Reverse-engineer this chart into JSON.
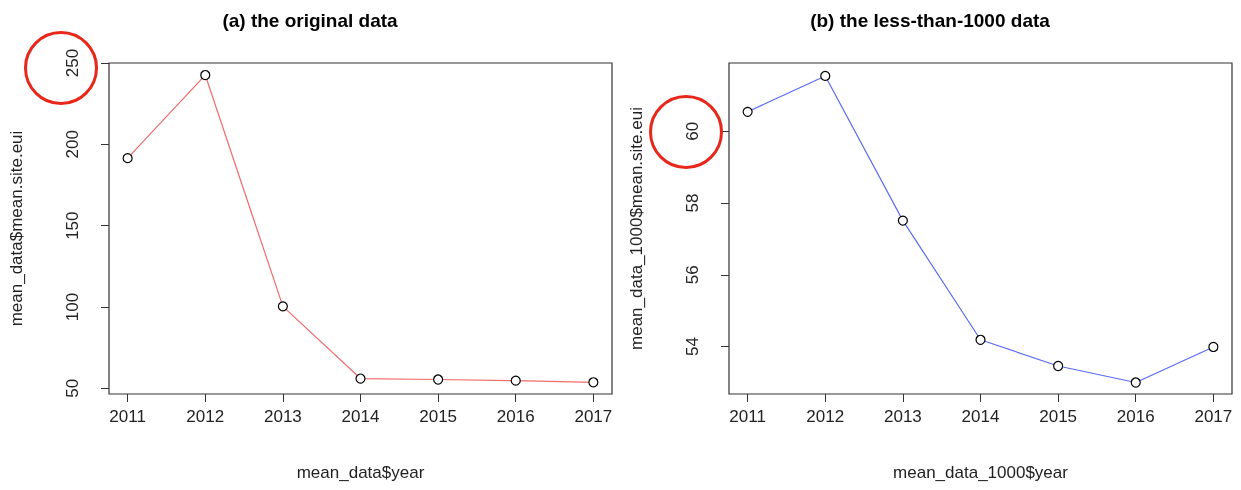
{
  "chart_data": [
    {
      "type": "line",
      "title": "(a) the original data",
      "xlabel": "mean_data$year",
      "ylabel": "mean_data$mean.site.eui",
      "x": [
        2011,
        2012,
        2013,
        2014,
        2015,
        2016,
        2017
      ],
      "series": [
        {
          "color": "#f26b6b",
          "values": [
            191.5,
            242.6,
            100.4,
            56,
            55.4,
            54.7,
            53.7
          ]
        }
      ],
      "xlim": [
        2010.76,
        2017.24
      ],
      "xticks": [
        2011,
        2012,
        2013,
        2014,
        2015,
        2016,
        2017
      ],
      "ylim": [
        46.5,
        250
      ],
      "yticks": [
        50,
        100,
        150,
        200,
        250
      ],
      "marker": "circle",
      "grid": false
    },
    {
      "type": "line",
      "title": "(b) the less-than-1000 data",
      "xlabel": "mean_data_1000$year",
      "ylabel": "mean_data_1000$mean.site.eui",
      "x": [
        2011,
        2012,
        2013,
        2014,
        2015,
        2016,
        2017
      ],
      "series": [
        {
          "color": "#5a6cf5",
          "values": [
            60.54,
            61.54,
            57.51,
            54.19,
            53.46,
            53.0,
            53.99
          ]
        }
      ],
      "xlim": [
        2010.76,
        2017.24
      ],
      "xticks": [
        2011,
        2012,
        2013,
        2014,
        2015,
        2016,
        2017
      ],
      "ylim": [
        52.68,
        61.9
      ],
      "yticks": [
        54,
        56,
        58,
        60
      ],
      "marker": "circle",
      "grid": false
    }
  ]
}
